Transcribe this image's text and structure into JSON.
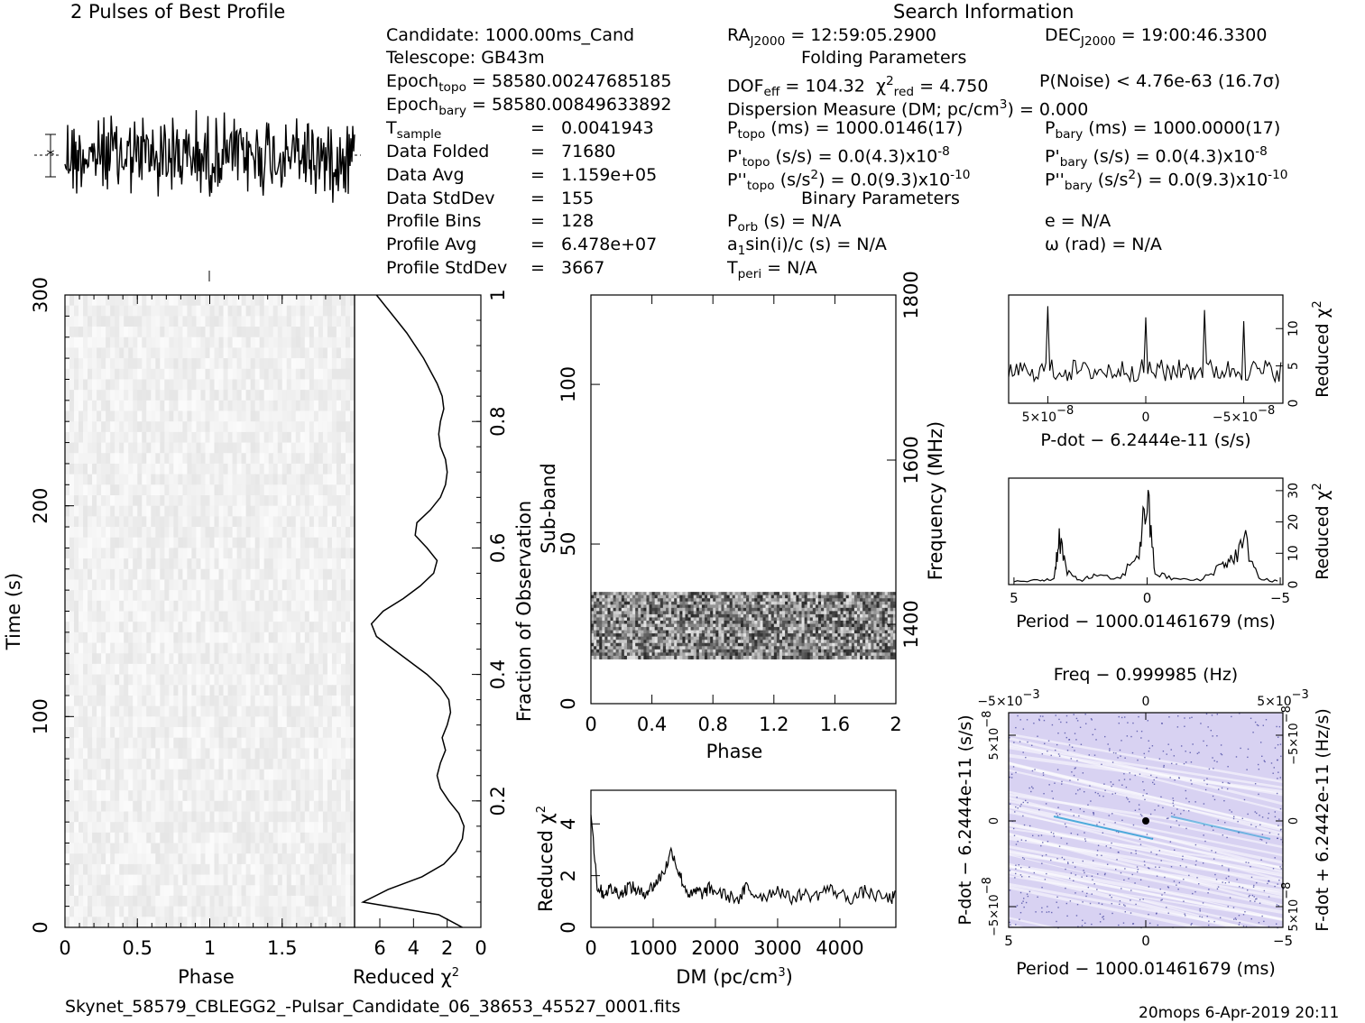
{
  "header": {
    "left_title": "2 Pulses of Best Profile",
    "right_title": "Search Information"
  },
  "info": {
    "candidate": "Candidate:  1000.00ms_Cand",
    "telescope": "Telescope:  GB43m",
    "epoch_topo_label": "Epoch",
    "epoch_topo_sub": "topo",
    "epoch_topo_val": "= 58580.00247685185",
    "epoch_bary_label": "Epoch",
    "epoch_bary_sub": "bary",
    "epoch_bary_val": "= 58580.00849633892",
    "tsample_label": "T",
    "tsample_sub": "sample",
    "tsample_eq": "=",
    "tsample_val": "0.0041943",
    "rows": [
      {
        "label": "Data Folded",
        "eq": "=",
        "val": "71680"
      },
      {
        "label": "Data Avg",
        "eq": "=",
        "val": "1.159e+05"
      },
      {
        "label": "Data StdDev",
        "eq": "=",
        "val": "155"
      },
      {
        "label": "Profile Bins",
        "eq": "=",
        "val": "128"
      },
      {
        "label": "Profile Avg",
        "eq": "=",
        "val": "6.478e+07"
      },
      {
        "label": "Profile StdDev",
        "eq": "=",
        "val": "3667"
      }
    ]
  },
  "search": {
    "ra_label": "RA",
    "ra_sub": "J2000",
    "ra_val": "= 12:59:05.2900",
    "dec_label": "DEC",
    "dec_sub": "J2000",
    "dec_val": "= 19:00:46.3300",
    "folding_title": "Folding Parameters",
    "dof_label": "DOF",
    "dof_sub": "eff",
    "dof_val": "= 104.32",
    "chi_label": "χ",
    "chi_sup": "2",
    "chi_sub": "red",
    "chi_val": "= 4.750",
    "pnoise": "P(Noise) < 4.76e-63   (16.7σ)",
    "dm_a": "Dispersion Measure (DM; pc/cm",
    "dm_sup": "3",
    "dm_b": ") = 0.000",
    "ptopo_label": "P",
    "ptopo_sub": "topo",
    "ptopo_val": "(ms) =  1000.0146(17)",
    "pbary_label": "P",
    "pbary_sub": "bary",
    "pbary_val": "(ms) =  1000.0000(17)",
    "pdtopo_label": "P'",
    "pdtopo_sub": "topo",
    "pdtopo_val": "(s/s) = 0.0(4.3)x10",
    "pdtopo_exp": "-8",
    "pdbary_label": "P'",
    "pdbary_sub": "bary",
    "pdbary_val": "(s/s) = 0.0(4.3)x10",
    "pdbary_exp": "-8",
    "pddtopo_label": "P''",
    "pddtopo_sub": "topo",
    "pddtopo_a": "(s/s",
    "pddtopo_sup": "2",
    "pddtopo_b": ") = 0.0(9.3)x10",
    "pddtopo_exp": "-10",
    "pddbary_label": "P''",
    "pddbary_sub": "bary",
    "pddbary_a": "(s/s",
    "pddbary_sup": "2",
    "pddbary_b": ") = 0.0(9.3)x10",
    "pddbary_exp": "-10",
    "binary_title": "Binary Parameters",
    "porb_label": "P",
    "porb_sub": "orb",
    "porb_val": "(s) = N/A",
    "e_val": "e = N/A",
    "a1_label": "a",
    "a1_sub": "1",
    "a1_val": "sin(i)/c (s) = N/A",
    "omega_val": "ω (rad) = N/A",
    "tperi_label": "T",
    "tperi_sub": "peri",
    "tperi_val": "= N/A"
  },
  "footer": {
    "filename": "Skynet_58579_CBLEGG2_-Pulsar_Candidate_06_38653_45527_0001.fits",
    "stamp": "20mops   6-Apr-2019 20:11"
  },
  "colors": {
    "ink": "#000000",
    "ppdot_bg": "#d8d2f2",
    "ppdot_dots": "#3a3a9a",
    "ppdot_streak": "#2a9fd6"
  },
  "chart_data": [
    {
      "id": "profile",
      "type": "line",
      "title": "2 Pulses of Best Profile",
      "description_free": true,
      "x_range": [
        0,
        2
      ],
      "n_points": 256,
      "peak_phase": null
    },
    {
      "id": "time_phase",
      "type": "heatmap",
      "xlabel": "Phase",
      "ylabel": "Time (s)",
      "x_ticks": [
        "0",
        "0.5",
        "1",
        "1.5"
      ],
      "y_ticks": [
        "0",
        "100",
        "200",
        "300"
      ],
      "xlim": [
        0,
        2
      ],
      "ylim": [
        0,
        300
      ]
    },
    {
      "id": "time_chi2",
      "type": "line",
      "xlabel": "Reduced χ",
      "xlabel_sup": "2",
      "right_label": "Fraction of Observation",
      "x_ticks": [
        "6",
        "4",
        "2",
        "0"
      ],
      "xlim": [
        7.5,
        0
      ],
      "y_ticks": [
        "0.2",
        "0.4",
        "0.6",
        "0.8",
        "1"
      ],
      "fraction": [
        0.0,
        0.02,
        0.04,
        0.06,
        0.08,
        0.1,
        0.12,
        0.14,
        0.16,
        0.18,
        0.2,
        0.22,
        0.24,
        0.26,
        0.28,
        0.3,
        0.32,
        0.34,
        0.36,
        0.38,
        0.4,
        0.42,
        0.44,
        0.46,
        0.48,
        0.5,
        0.52,
        0.54,
        0.56,
        0.58,
        0.6,
        0.62,
        0.64,
        0.66,
        0.68,
        0.7,
        0.72,
        0.74,
        0.76,
        0.78,
        0.8,
        0.82,
        0.84,
        0.86,
        0.88,
        0.9,
        0.92,
        0.94,
        0.96,
        0.98,
        1.0
      ],
      "chi2": [
        1.1,
        2.5,
        7.0,
        5.5,
        3.5,
        2.2,
        1.5,
        1.1,
        1.0,
        1.3,
        1.9,
        2.4,
        2.6,
        2.4,
        2.1,
        2.3,
        2.0,
        1.8,
        1.9,
        2.4,
        3.2,
        4.2,
        5.2,
        6.2,
        6.5,
        5.8,
        4.6,
        3.6,
        2.8,
        2.6,
        3.2,
        3.9,
        3.8,
        3.0,
        2.4,
        2.1,
        2.0,
        2.1,
        2.4,
        2.5,
        2.4,
        2.2,
        2.3,
        2.6,
        3.0,
        3.4,
        3.9,
        4.4,
        5.0,
        5.6,
        6.2
      ]
    },
    {
      "id": "subband_phase",
      "type": "heatmap",
      "xlabel": "Phase",
      "ylabel": "Sub-band",
      "right_label": "Frequency (MHz)",
      "x_ticks": [
        "0",
        "0.4",
        "0.8",
        "1.2",
        "1.6",
        "2"
      ],
      "y_ticks": [
        "0",
        "50",
        "100"
      ],
      "freq_ticks": [
        "1400",
        "1600",
        "1800"
      ],
      "xlim": [
        0,
        2
      ],
      "ylim": [
        0,
        128
      ],
      "active_subbands": [
        14,
        35
      ]
    },
    {
      "id": "dm_chi2",
      "type": "line",
      "xlabel": "DM (pc/cm",
      "xlabel_sup": "3",
      "xlabel_end": ")",
      "ylabel": "Reduced χ",
      "ylabel_sup": "2",
      "x_ticks": [
        "0",
        "1000",
        "2000",
        "3000",
        "4000"
      ],
      "y_ticks": [
        "0",
        "2",
        "4"
      ],
      "xlim": [
        0,
        4900
      ],
      "ylim": [
        0,
        5.3
      ],
      "dm": [
        0,
        100,
        200,
        300,
        400,
        500,
        600,
        700,
        800,
        900,
        1000,
        1100,
        1200,
        1300,
        1400,
        1500,
        1600,
        1700,
        1800,
        1900,
        2000,
        2200,
        2400,
        2500,
        2600,
        2800,
        3000,
        3200,
        3400,
        3600,
        3800,
        4000,
        4200,
        4400,
        4600,
        4800,
        4900
      ],
      "chi2": [
        4.5,
        1.6,
        1.3,
        1.5,
        1.4,
        1.3,
        1.6,
        1.5,
        1.3,
        1.4,
        1.6,
        1.9,
        2.3,
        3.0,
        2.2,
        1.6,
        1.2,
        1.4,
        1.3,
        1.5,
        1.4,
        1.2,
        1.1,
        1.6,
        1.3,
        1.2,
        1.5,
        1.1,
        1.3,
        1.2,
        1.5,
        1.3,
        1.1,
        1.4,
        1.2,
        1.1,
        1.2
      ]
    },
    {
      "id": "pdot_chi2",
      "type": "line",
      "xlabel": "P-dot − 6.2444e-11 (s/s)",
      "ylabel": "Reduced χ",
      "ylabel_sup": "2",
      "x_ticks": [
        "5×10",
        "0",
        "−5×10"
      ],
      "x_tick_exp": "−8",
      "y_ticks": [
        "0",
        "5",
        "10"
      ],
      "ylim": [
        0,
        14.5
      ],
      "xlim": [
        7e-08,
        -7e-08
      ],
      "pdot": [
        7e-08,
        6e-08,
        5e-08,
        4e-08,
        3e-08,
        2e-08,
        1e-08,
        0,
        -1e-08,
        -2e-08,
        -3e-08,
        -4e-08,
        -5e-08,
        -6e-08,
        -7e-08
      ],
      "chi2": [
        3.5,
        4.0,
        13.0,
        3.0,
        5.0,
        3.5,
        4.0,
        11.5,
        3.0,
        4.5,
        12.5,
        3.5,
        11.0,
        4.0,
        2.5
      ]
    },
    {
      "id": "period_chi2",
      "type": "line",
      "xlabel": "Period − 1000.01461679 (ms)",
      "ylabel": "Reduced χ",
      "ylabel_sup": "2",
      "x_ticks": [
        "5",
        "0",
        "−5"
      ],
      "y_ticks": [
        "0",
        "10",
        "20",
        "30"
      ],
      "xlim": [
        5.2,
        -5.1
      ],
      "ylim": [
        0,
        34
      ],
      "period": [
        5.0,
        4.0,
        3.5,
        3.3,
        3.0,
        2.5,
        2.0,
        1.0,
        0.3,
        0.0,
        -0.3,
        -1.0,
        -2.0,
        -2.8,
        -3.2,
        -3.7,
        -4.2,
        -5.0
      ],
      "chi2": [
        1.0,
        1.5,
        2.0,
        17.0,
        4.0,
        1.5,
        3.0,
        2.0,
        12.0,
        31.0,
        4.0,
        2.0,
        1.5,
        7.0,
        9.0,
        15.0,
        2.0,
        1.0
      ]
    },
    {
      "id": "ppdot_plane",
      "type": "heatmap",
      "title": "Freq − 0.999985 (Hz)",
      "xlabel": "Period − 1000.01461679 (ms)",
      "ylabel": "P-dot − 6.2444e-11 (s/s)",
      "right_label": "F-dot + 6.2442e-11 (Hz/s)",
      "x_ticks": [
        "5",
        "0",
        "−5"
      ],
      "top_ticks": [
        "−5×10",
        "0",
        "5×10"
      ],
      "top_tick_exp": "−3",
      "y_ticks": [
        "5×10",
        "0",
        "−5×10"
      ],
      "y_tick_exp": "−8",
      "right_ticks": [
        "−5×10",
        "0",
        "5×10"
      ],
      "right_tick_exp": "−8",
      "xlim": [
        5,
        -5
      ],
      "best_point": [
        0,
        0
      ]
    }
  ]
}
